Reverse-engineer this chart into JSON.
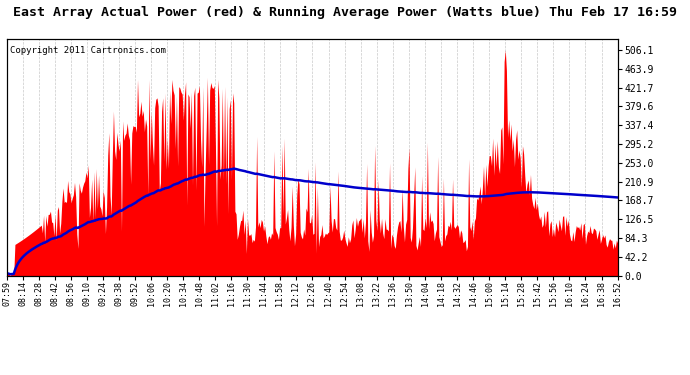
{
  "title": "East Array Actual Power (red) & Running Average Power (Watts blue) Thu Feb 17 16:59",
  "copyright": "Copyright 2011 Cartronics.com",
  "yticks": [
    0.0,
    42.2,
    84.3,
    126.5,
    168.7,
    210.9,
    253.0,
    295.2,
    337.4,
    379.6,
    421.7,
    463.9,
    506.1
  ],
  "ymax": 530,
  "background_color": "#ffffff",
  "fill_color": "#ff0000",
  "avg_color": "#0000cc",
  "grid_color": "#bbbbbb",
  "title_fontsize": 9.5,
  "copyright_fontsize": 6.5,
  "xtick_labels": [
    "07:59",
    "08:14",
    "08:28",
    "08:42",
    "08:56",
    "09:10",
    "09:24",
    "09:38",
    "09:52",
    "10:06",
    "10:20",
    "10:34",
    "10:48",
    "11:02",
    "11:16",
    "11:30",
    "11:44",
    "11:58",
    "12:12",
    "12:26",
    "12:40",
    "12:54",
    "13:08",
    "13:22",
    "13:36",
    "13:50",
    "14:04",
    "14:18",
    "14:32",
    "14:46",
    "15:00",
    "15:14",
    "15:28",
    "15:42",
    "15:56",
    "16:10",
    "16:24",
    "16:38",
    "16:52"
  ]
}
